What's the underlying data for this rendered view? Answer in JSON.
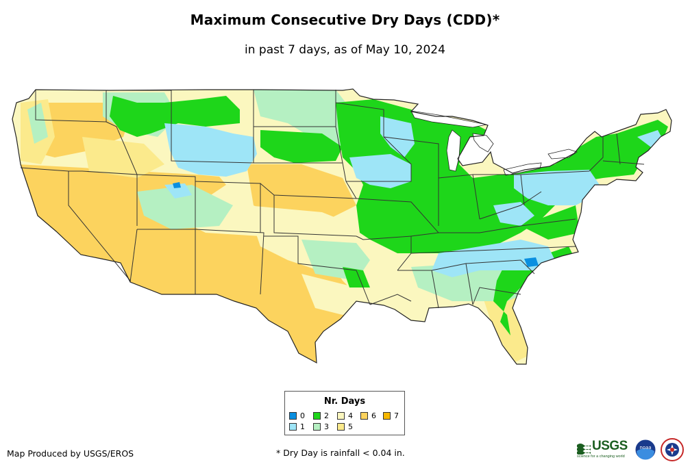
{
  "header": {
    "title": "Maximum Consecutive Dry Days (CDD)*",
    "subtitle": "in past 7 days, as of May 10, 2024"
  },
  "legend": {
    "title": "Nr. Days",
    "items": [
      {
        "label": "0",
        "color": "#0a8fe0"
      },
      {
        "label": "1",
        "color": "#9ee5f7"
      },
      {
        "label": "2",
        "color": "#1ed61a"
      },
      {
        "label": "3",
        "color": "#b5f0c2"
      },
      {
        "label": "4",
        "color": "#fbf7bf"
      },
      {
        "label": "5",
        "color": "#fbea8c"
      },
      {
        "label": "6",
        "color": "#fcd35e"
      },
      {
        "label": "7",
        "color": "#f7b800"
      }
    ]
  },
  "footer": {
    "credit": "Map Produced by USGS/EROS",
    "footnote": "* Dry Day is rainfall < 0.04 in.",
    "usgs_logo_text": "USGS",
    "usgs_tagline": "science for a changing world",
    "noaa_logo_text": "noaa"
  },
  "map": {
    "region": "Contiguous United States",
    "icons": [
      "usgs-logo-icon",
      "noaa-logo-icon",
      "nws-logo-icon"
    ]
  }
}
